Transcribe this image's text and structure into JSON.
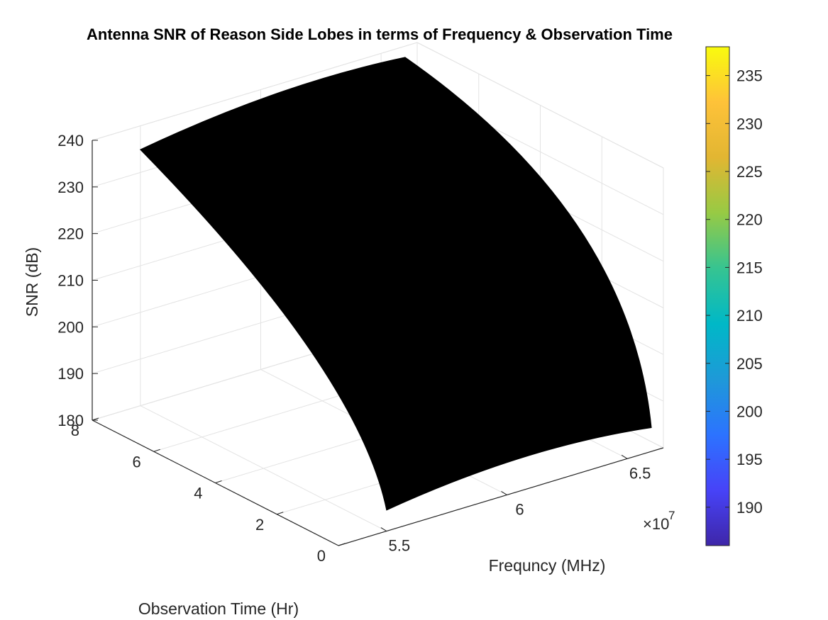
{
  "chart_data": {
    "type": "surface",
    "title": "Antenna SNR of Reason Side Lobes in terms of Frequency & Observation Time",
    "xlabel": "Frequncy (MHz)",
    "ylabel": "Observation Time (Hr)",
    "zlabel": "SNR (dB)",
    "x_exponent_label": "×10",
    "x_exponent_power": "7",
    "x_ticks": [
      "5.5",
      "6",
      "6.5"
    ],
    "y_ticks": [
      "0",
      "2",
      "4",
      "6",
      "8"
    ],
    "z_ticks": [
      "180",
      "190",
      "200",
      "210",
      "220",
      "230",
      "240"
    ],
    "xlim": [
      53000000,
      66500000
    ],
    "ylim": [
      0,
      8
    ],
    "zlim": [
      180,
      240
    ],
    "grid": true,
    "surface_color": "#000000",
    "colorbar": {
      "limits": [
        186,
        238
      ],
      "ticks": [
        "190",
        "195",
        "200",
        "205",
        "210",
        "215",
        "220",
        "225",
        "230",
        "235"
      ],
      "colormap": [
        "#3e26a8",
        "#4743f8",
        "#2c73ff",
        "#1e99d8",
        "#00b8c7",
        "#36c491",
        "#97ca44",
        "#e2b632",
        "#fec239",
        "#f9fb0e"
      ]
    },
    "surface_corners": [
      {
        "x": 55000000,
        "y": 0,
        "z": 184.5
      },
      {
        "x": 66000000,
        "y": 0,
        "z": 185.1
      },
      {
        "x": 66000000,
        "y": 8,
        "z": 237.6
      },
      {
        "x": 55000000,
        "y": 8,
        "z": 234.9
      }
    ]
  }
}
